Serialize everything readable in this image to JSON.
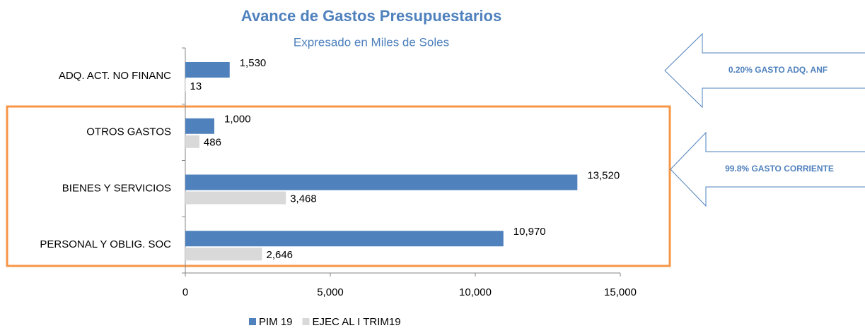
{
  "chart_data": {
    "type": "bar",
    "orientation": "horizontal",
    "title": "Avance de Gastos Presupuestarios",
    "subtitle": "Expresado en Miles de Soles",
    "categories": [
      "ADQ. ACT. NO FINANC",
      "OTROS GASTOS",
      "BIENES Y SERVICIOS",
      "PERSONAL Y OBLIG. SOC"
    ],
    "series": [
      {
        "name": "PIM 19",
        "color": "#4f81bd",
        "values": [
          1530,
          1000,
          13520,
          10970
        ],
        "value_labels": [
          "1,530",
          "1,000",
          "13,520",
          "10,970"
        ]
      },
      {
        "name": "EJEC AL I TRIM19",
        "color": "#d9d9d9",
        "values": [
          13,
          486,
          3468,
          2646
        ],
        "value_labels": [
          "13",
          "486",
          "3,468",
          "2,646"
        ]
      }
    ],
    "xlim": [
      0,
      15000
    ],
    "xticks": [
      0,
      {
        "value": 5000,
        "label": "5,000"
      },
      {
        "value": 10000,
        "label": "10,000"
      },
      {
        "value": 15000,
        "label": "15,000"
      }
    ],
    "legend": "bottom",
    "annotations": [
      "0.20% GASTO ADQ. ANF",
      "99.8% GASTO CORRIENTE"
    ]
  }
}
